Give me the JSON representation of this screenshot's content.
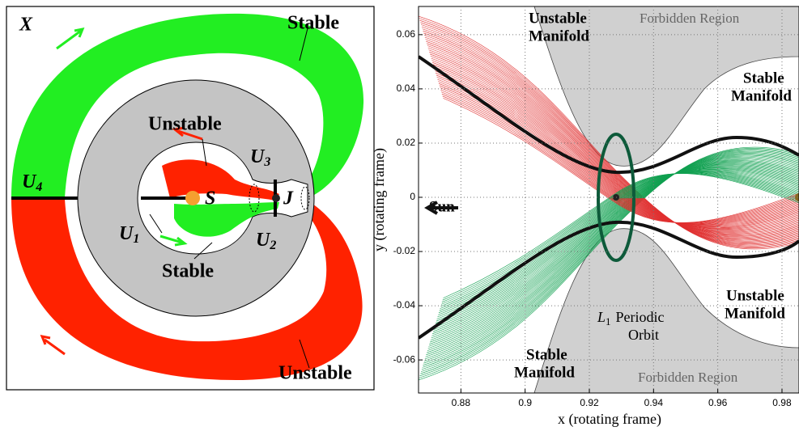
{
  "left_panel": {
    "corner": "X",
    "stable_top": "Stable",
    "unstable_inner": "Unstable",
    "stable_inner": "Stable",
    "unstable_bottom": "Unstable",
    "s": "S",
    "j": "J",
    "u1": {
      "letter": "U",
      "sub": "1"
    },
    "u2": {
      "letter": "U",
      "sub": "2"
    },
    "u3": {
      "letter": "U",
      "sub": "3"
    },
    "u4": {
      "letter": "U",
      "sub": "4"
    }
  },
  "chart_data": {
    "type": "manifold",
    "xlabel": "x (rotating frame)",
    "ylabel": "y (rotating frame)",
    "xlim": [
      0.8668,
      0.9853
    ],
    "ylim": [
      -0.0722,
      0.0704
    ],
    "xticks": [
      0.88,
      0.9,
      0.92,
      0.94,
      0.96,
      0.98
    ],
    "yticks": [
      -0.06,
      -0.04,
      -0.02,
      0,
      0.02,
      0.04,
      0.06
    ],
    "grid": true,
    "annotations": {
      "forbidden_top": "Forbidden Region",
      "forbidden_bottom": "Forbidden Region",
      "sun": "Sun",
      "unstable_top": [
        "Unstable",
        "Manifold"
      ],
      "stable_right": [
        "Stable",
        "Manifold"
      ],
      "stable_bottom": [
        "Stable",
        "Manifold"
      ],
      "unstable_bottom": [
        "Unstable",
        "Manifold"
      ],
      "orbit": {
        "symbol": "L",
        "sub": "1",
        "lines": [
          "Periodic",
          "Orbit"
        ]
      }
    }
  }
}
